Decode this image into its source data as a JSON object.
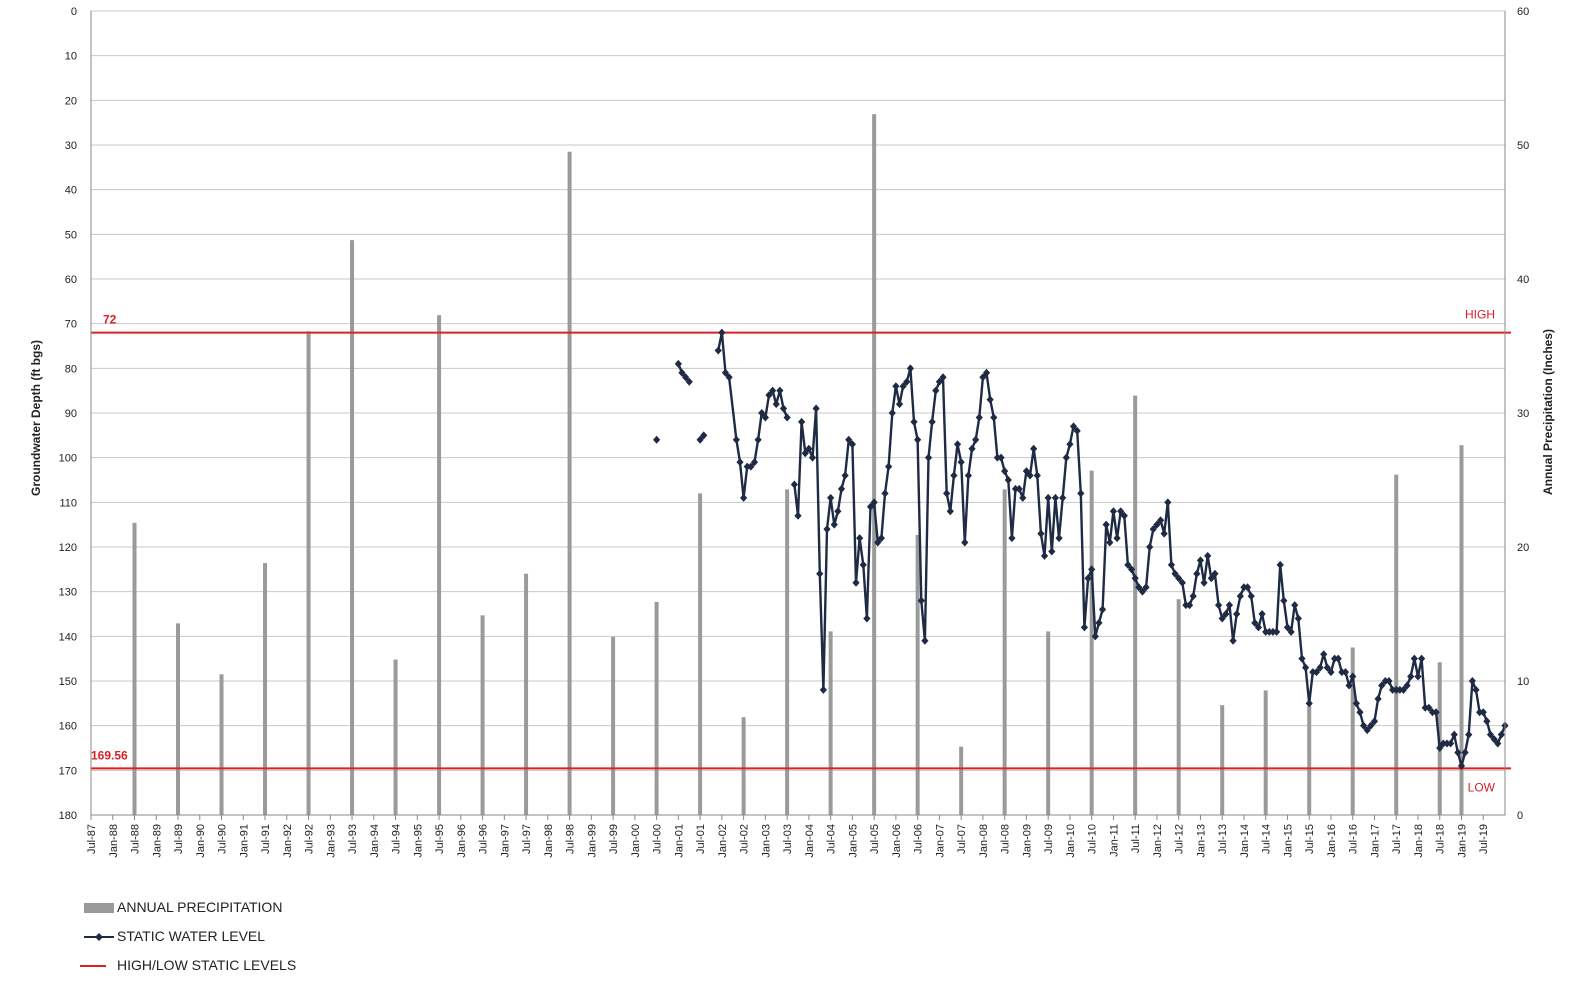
{
  "chart_data": {
    "type": "line",
    "title": "",
    "ylabel": "Groundwater Depth (ft bgs)",
    "y2label": "Annual Precipitation (Inches)",
    "ylim": [
      0,
      180
    ],
    "y_inverted": true,
    "y_ticks": [
      0,
      10,
      20,
      30,
      40,
      50,
      60,
      70,
      80,
      90,
      100,
      110,
      120,
      130,
      140,
      150,
      160,
      170,
      180
    ],
    "y2lim": [
      0,
      60
    ],
    "y2_ticks": [
      0,
      10,
      20,
      30,
      40,
      50,
      60
    ],
    "x_start": "1987-07",
    "x_end": "2020-01",
    "x_tick_labels": [
      "Jul-87",
      "Jan-88",
      "Jul-88",
      "Jan-89",
      "Jul-89",
      "Jan-90",
      "Jul-90",
      "Jan-91",
      "Jul-91",
      "Jan-92",
      "Jul-92",
      "Jan-93",
      "Jul-93",
      "Jan-94",
      "Jul-94",
      "Jan-95",
      "Jul-95",
      "Jan-96",
      "Jul-96",
      "Jan-97",
      "Jul-97",
      "Jan-98",
      "Jul-98",
      "Jan-99",
      "Jul-99",
      "Jan-00",
      "Jul-00",
      "Jan-01",
      "Jul-01",
      "Jan-02",
      "Jul-02",
      "Jan-03",
      "Jul-03",
      "Jan-04",
      "Jul-04",
      "Jan-05",
      "Jul-05",
      "Jan-06",
      "Jul-06",
      "Jan-07",
      "Jul-07",
      "Jan-08",
      "Jul-08",
      "Jan-09",
      "Jul-09",
      "Jan-10",
      "Jul-10",
      "Jan-11",
      "Jul-11",
      "Jan-12",
      "Jul-12",
      "Jan-13",
      "Jul-13",
      "Jan-14",
      "Jul-14",
      "Jan-15",
      "Jul-15",
      "Jan-16",
      "Jul-16",
      "Jan-17",
      "Jul-17",
      "Jan-18",
      "Jul-18",
      "Jan-19",
      "Jul-19"
    ],
    "grid": true,
    "legend_position": "bottom-left",
    "series": [
      {
        "name": "ANNUAL PRECIPITATION",
        "kind": "bar",
        "axis": "right",
        "color": "#9a9a9a",
        "points": [
          [
            "1988-07",
            21.8
          ],
          [
            "1989-07",
            14.3
          ],
          [
            "1990-07",
            10.5
          ],
          [
            "1991-07",
            18.8
          ],
          [
            "1992-07",
            36.1
          ],
          [
            "1993-07",
            42.9
          ],
          [
            "1994-07",
            11.6
          ],
          [
            "1995-07",
            37.3
          ],
          [
            "1996-07",
            14.9
          ],
          [
            "1997-07",
            18.0
          ],
          [
            "1998-07",
            49.5
          ],
          [
            "1999-07",
            13.3
          ],
          [
            "2000-07",
            15.9
          ],
          [
            "2001-07",
            24.0
          ],
          [
            "2002-07",
            7.3
          ],
          [
            "2003-07",
            24.3
          ],
          [
            "2004-07",
            13.7
          ],
          [
            "2005-07",
            52.3
          ],
          [
            "2006-07",
            20.9
          ],
          [
            "2007-07",
            5.1
          ],
          [
            "2008-07",
            24.3
          ],
          [
            "2009-07",
            13.7
          ],
          [
            "2010-07",
            25.7
          ],
          [
            "2011-07",
            31.3
          ],
          [
            "2012-07",
            16.1
          ],
          [
            "2013-07",
            8.2
          ],
          [
            "2014-07",
            9.3
          ],
          [
            "2015-07",
            8.1
          ],
          [
            "2016-07",
            12.5
          ],
          [
            "2017-07",
            25.4
          ],
          [
            "2018-07",
            11.4
          ],
          [
            "2019-01",
            27.6
          ]
        ]
      },
      {
        "name": "STATIC WATER LEVEL",
        "kind": "line",
        "axis": "left",
        "color": "#1f2a44",
        "points": [
          [
            "2000-07",
            96
          ],
          null,
          [
            "2001-01",
            79
          ],
          [
            "2001-02",
            81
          ],
          [
            "2001-03",
            82
          ],
          [
            "2001-04",
            83
          ],
          null,
          [
            "2001-07",
            96
          ],
          [
            "2001-08",
            95
          ],
          null,
          [
            "2001-12",
            76
          ],
          [
            "2002-01",
            72
          ],
          [
            "2002-02",
            81
          ],
          [
            "2002-03",
            82
          ],
          [
            "2002-05",
            96
          ],
          [
            "2002-06",
            101
          ],
          [
            "2002-07",
            109
          ],
          [
            "2002-08",
            102
          ],
          [
            "2002-09",
            102
          ],
          [
            "2002-10",
            101
          ],
          [
            "2002-11",
            96
          ],
          [
            "2002-12",
            90
          ],
          [
            "2003-01",
            91
          ],
          [
            "2003-02",
            86
          ],
          [
            "2003-03",
            85
          ],
          [
            "2003-04",
            88
          ],
          [
            "2003-05",
            85
          ],
          [
            "2003-06",
            89
          ],
          [
            "2003-07",
            91
          ],
          null,
          [
            "2003-09",
            106
          ],
          [
            "2003-10",
            113
          ],
          [
            "2003-11",
            92
          ],
          [
            "2003-12",
            99
          ],
          [
            "2004-01",
            98
          ],
          [
            "2004-02",
            100
          ],
          [
            "2004-03",
            89
          ],
          [
            "2004-04",
            126
          ],
          [
            "2004-05",
            152
          ],
          [
            "2004-06",
            116
          ],
          [
            "2004-07",
            109
          ],
          [
            "2004-08",
            115
          ],
          [
            "2004-09",
            112
          ],
          [
            "2004-10",
            107
          ],
          [
            "2004-11",
            104
          ],
          [
            "2004-12",
            96
          ],
          [
            "2005-01",
            97
          ],
          [
            "2005-02",
            128
          ],
          [
            "2005-03",
            118
          ],
          [
            "2005-04",
            124
          ],
          [
            "2005-05",
            136
          ],
          [
            "2005-06",
            111
          ],
          [
            "2005-07",
            110
          ],
          [
            "2005-08",
            119
          ],
          [
            "2005-09",
            118
          ],
          [
            "2005-10",
            108
          ],
          [
            "2005-11",
            102
          ],
          [
            "2005-12",
            90
          ],
          [
            "2006-01",
            84
          ],
          [
            "2006-02",
            88
          ],
          [
            "2006-03",
            84
          ],
          [
            "2006-04",
            83
          ],
          [
            "2006-05",
            80
          ],
          [
            "2006-06",
            92
          ],
          [
            "2006-07",
            96
          ],
          [
            "2006-08",
            132
          ],
          [
            "2006-09",
            141
          ],
          [
            "2006-10",
            100
          ],
          [
            "2006-11",
            92
          ],
          [
            "2006-12",
            85
          ],
          [
            "2007-01",
            83
          ],
          [
            "2007-02",
            82
          ],
          [
            "2007-03",
            108
          ],
          [
            "2007-04",
            112
          ],
          [
            "2007-05",
            104
          ],
          [
            "2007-06",
            97
          ],
          [
            "2007-07",
            101
          ],
          [
            "2007-08",
            119
          ],
          [
            "2007-09",
            104
          ],
          [
            "2007-10",
            98
          ],
          [
            "2007-11",
            96
          ],
          [
            "2007-12",
            91
          ],
          [
            "2008-01",
            82
          ],
          [
            "2008-02",
            81
          ],
          [
            "2008-03",
            87
          ],
          [
            "2008-04",
            91
          ],
          [
            "2008-05",
            100
          ],
          [
            "2008-06",
            100
          ],
          [
            "2008-07",
            103
          ],
          [
            "2008-08",
            105
          ],
          [
            "2008-09",
            118
          ],
          [
            "2008-10",
            107
          ],
          [
            "2008-11",
            107
          ],
          [
            "2008-12",
            109
          ],
          [
            "2009-01",
            103
          ],
          [
            "2009-02",
            104
          ],
          [
            "2009-03",
            98
          ],
          [
            "2009-04",
            104
          ],
          [
            "2009-05",
            117
          ],
          [
            "2009-06",
            122
          ],
          [
            "2009-07",
            109
          ],
          [
            "2009-08",
            121
          ],
          [
            "2009-09",
            109
          ],
          [
            "2009-10",
            118
          ],
          [
            "2009-11",
            109
          ],
          [
            "2009-12",
            100
          ],
          [
            "2010-01",
            97
          ],
          [
            "2010-02",
            93
          ],
          [
            "2010-03",
            94
          ],
          [
            "2010-04",
            108
          ],
          [
            "2010-05",
            138
          ],
          [
            "2010-06",
            127
          ],
          [
            "2010-07",
            125
          ],
          [
            "2010-08",
            140
          ],
          [
            "2010-09",
            137
          ],
          [
            "2010-10",
            134
          ],
          [
            "2010-11",
            115
          ],
          [
            "2010-12",
            119
          ],
          [
            "2011-01",
            112
          ],
          [
            "2011-02",
            118
          ],
          [
            "2011-03",
            112
          ],
          [
            "2011-04",
            113
          ],
          [
            "2011-05",
            124
          ],
          [
            "2011-06",
            125
          ],
          [
            "2011-07",
            127
          ],
          [
            "2011-08",
            129
          ],
          [
            "2011-09",
            130
          ],
          [
            "2011-10",
            129
          ],
          [
            "2011-11",
            120
          ],
          [
            "2011-12",
            116
          ],
          [
            "2012-01",
            115
          ],
          [
            "2012-02",
            114
          ],
          [
            "2012-03",
            117
          ],
          [
            "2012-04",
            110
          ],
          [
            "2012-05",
            124
          ],
          [
            "2012-06",
            126
          ],
          [
            "2012-07",
            127
          ],
          [
            "2012-08",
            128
          ],
          [
            "2012-09",
            133
          ],
          [
            "2012-10",
            133
          ],
          [
            "2012-11",
            131
          ],
          [
            "2012-12",
            126
          ],
          [
            "2013-01",
            123
          ],
          [
            "2013-02",
            128
          ],
          [
            "2013-03",
            122
          ],
          [
            "2013-04",
            127
          ],
          [
            "2013-05",
            126
          ],
          [
            "2013-06",
            133
          ],
          [
            "2013-07",
            136
          ],
          [
            "2013-08",
            135
          ],
          [
            "2013-09",
            133
          ],
          [
            "2013-10",
            141
          ],
          [
            "2013-11",
            135
          ],
          [
            "2013-12",
            131
          ],
          [
            "2014-01",
            129
          ],
          [
            "2014-02",
            129
          ],
          [
            "2014-03",
            131
          ],
          [
            "2014-04",
            137
          ],
          [
            "2014-05",
            138
          ],
          [
            "2014-06",
            135
          ],
          [
            "2014-07",
            139
          ],
          [
            "2014-08",
            139
          ],
          [
            "2014-09",
            139
          ],
          [
            "2014-10",
            139
          ],
          [
            "2014-11",
            124
          ],
          [
            "2014-12",
            132
          ],
          [
            "2015-01",
            138
          ],
          [
            "2015-02",
            139
          ],
          [
            "2015-03",
            133
          ],
          [
            "2015-04",
            136
          ],
          [
            "2015-05",
            145
          ],
          [
            "2015-06",
            147
          ],
          [
            "2015-07",
            155
          ],
          [
            "2015-08",
            148
          ],
          [
            "2015-09",
            148
          ],
          [
            "2015-10",
            147
          ],
          [
            "2015-11",
            144
          ],
          [
            "2015-12",
            147
          ],
          [
            "2016-01",
            148
          ],
          [
            "2016-02",
            145
          ],
          [
            "2016-03",
            145
          ],
          [
            "2016-04",
            148
          ],
          [
            "2016-05",
            148
          ],
          [
            "2016-06",
            151
          ],
          [
            "2016-07",
            149
          ],
          [
            "2016-08",
            155
          ],
          [
            "2016-09",
            157
          ],
          [
            "2016-10",
            160
          ],
          [
            "2016-11",
            161
          ],
          [
            "2016-12",
            160
          ],
          [
            "2017-01",
            159
          ],
          [
            "2017-02",
            154
          ],
          [
            "2017-03",
            151
          ],
          [
            "2017-04",
            150
          ],
          [
            "2017-05",
            150
          ],
          [
            "2017-06",
            152
          ],
          [
            "2017-07",
            152
          ],
          [
            "2017-08",
            152
          ],
          [
            "2017-09",
            152
          ],
          [
            "2017-10",
            151
          ],
          [
            "2017-11",
            149
          ],
          [
            "2017-12",
            145
          ],
          [
            "2018-01",
            149
          ],
          [
            "2018-02",
            145
          ],
          [
            "2018-03",
            156
          ],
          [
            "2018-04",
            156
          ],
          [
            "2018-05",
            157
          ],
          [
            "2018-06",
            157
          ],
          [
            "2018-07",
            165
          ],
          [
            "2018-08",
            164
          ],
          [
            "2018-09",
            164
          ],
          [
            "2018-10",
            164
          ],
          [
            "2018-11",
            162
          ],
          [
            "2018-12",
            166
          ],
          [
            "2019-01",
            169
          ],
          [
            "2019-02",
            166
          ],
          [
            "2019-03",
            162
          ],
          [
            "2019-04",
            150
          ],
          [
            "2019-05",
            152
          ],
          [
            "2019-06",
            157
          ],
          [
            "2019-07",
            157
          ],
          [
            "2019-08",
            159
          ],
          [
            "2019-09",
            162
          ],
          [
            "2019-10",
            163
          ],
          [
            "2019-11",
            164
          ],
          [
            "2019-12",
            162
          ],
          [
            "2020-01",
            160
          ]
        ]
      }
    ],
    "reference_lines": [
      {
        "value": 72,
        "label": "72",
        "end_label": "HIGH",
        "color": "#e02020"
      },
      {
        "value": 169.56,
        "label": "169.56",
        "end_label": "LOW",
        "color": "#e02020"
      }
    ]
  },
  "legend": [
    {
      "label": "ANNUAL PRECIPITATION",
      "symbol": "bar",
      "color": "#9a9a9a"
    },
    {
      "label": "STATIC WATER LEVEL",
      "symbol": "line-marker",
      "color": "#1f2a44"
    },
    {
      "label": "HIGH/LOW STATIC LEVELS",
      "symbol": "line",
      "color": "#e02020"
    }
  ]
}
